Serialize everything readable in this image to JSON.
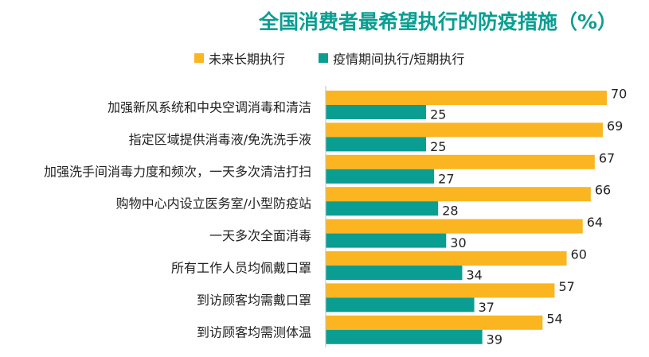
{
  "header": {
    "title": "全国消费者最希望执行的防疫措施（%）"
  },
  "legend": {
    "items": [
      {
        "label": "未来长期执行",
        "color": "#FBB521"
      },
      {
        "label": "疫情期间执行/短期执行",
        "color": "#0A9E92"
      }
    ]
  },
  "chart_data": {
    "type": "bar",
    "orientation": "horizontal",
    "title": "全国消费者最希望执行的防疫措施（%）",
    "categories": [
      "加强新风系统和中央空调消毒和清洁",
      "指定区域提供消毒液/免洗洗手液",
      "加强洗手间消毒力度和频次，一天多次清洁打扫",
      "购物中心内设立医务室/小型防疫站",
      "一天多次全面消毒",
      "所有工作人员均佩戴口罩",
      "到访顾客均需戴口罩",
      "到访顾客均需测体温"
    ],
    "series": [
      {
        "name": "未来长期执行",
        "color": "#FBB521",
        "values": [
          70,
          69,
          67,
          66,
          64,
          60,
          57,
          54
        ]
      },
      {
        "name": "疫情期间执行/短期执行",
        "color": "#0A9E92",
        "values": [
          25,
          25,
          27,
          28,
          30,
          34,
          37,
          39
        ]
      }
    ],
    "xlim": [
      0,
      70
    ],
    "grid": false,
    "legend_position": "top"
  }
}
